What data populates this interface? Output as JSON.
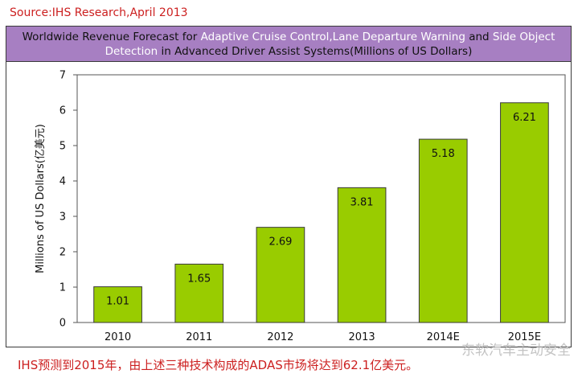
{
  "source": "Source:IHS Research,April 2013",
  "title_parts": [
    {
      "text": "Worldwide Revenue Forecast for ",
      "highlight": false
    },
    {
      "text": "Adaptive Cruise Control,Lane Departure Warning",
      "highlight": true
    },
    {
      "text": " and ",
      "highlight": false
    },
    {
      "text": "Side Object Detection",
      "highlight": true
    },
    {
      "text": " in Advanced Driver Assist Systems(Millions of US Dollars)",
      "highlight": false
    }
  ],
  "footer": "IHS预测到2015年，由上述三种技术构成的ADAS市场将达到62.1亿美元。",
  "watermark": "东软汽车主动安全",
  "colors": {
    "bar": "#99cc00",
    "title_bg": "#a77fc2",
    "source_text": "#cc1f1f",
    "highlight": "#ffffff"
  },
  "chart_data": {
    "type": "bar",
    "title": "Worldwide Revenue Forecast for Adaptive Cruise Control,Lane Departure Warning and Side Object Detection in Advanced Driver Assist Systems(Millions of US Dollars)",
    "xlabel": "",
    "ylabel": "Millions of US Dollars(亿美元)",
    "categories": [
      "2010",
      "2011",
      "2012",
      "2013",
      "2014E",
      "2015E"
    ],
    "values": [
      1.01,
      1.65,
      2.69,
      3.81,
      5.18,
      6.21
    ],
    "data_labels": [
      "1.01",
      "1.65",
      "2.69",
      "3.81",
      "5.18",
      "6.21"
    ],
    "ylim": [
      0,
      7
    ],
    "yticks": [
      0,
      1,
      2,
      3,
      4,
      5,
      6,
      7
    ],
    "grid": false,
    "legend": "none"
  }
}
